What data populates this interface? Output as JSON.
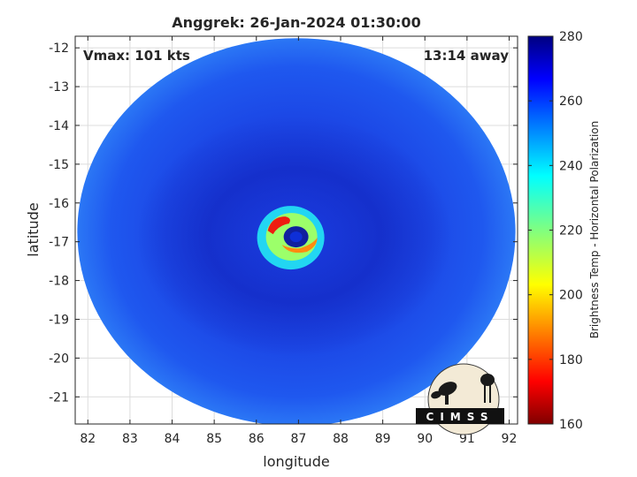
{
  "chart_data": {
    "type": "heatmap",
    "title": "Anggrek: 26-Jan-2024 01:30:00",
    "xlabel": "longitude",
    "ylabel": "latitude",
    "xlim": [
      81.7,
      92.2
    ],
    "ylim": [
      -21.7,
      -11.7
    ],
    "xticks": [
      82,
      83,
      84,
      85,
      86,
      87,
      88,
      89,
      90,
      91,
      92
    ],
    "yticks": [
      -12,
      -13,
      -14,
      -15,
      -16,
      -17,
      -18,
      -19,
      -20,
      -21
    ],
    "grid": true,
    "annotations": {
      "vmax": "Vmax: 101 kts",
      "away": "13:14 away"
    },
    "storm_center": {
      "lon": 86.9,
      "lat": -16.85
    },
    "swath": {
      "center_lon": 86.95,
      "center_lat": -16.75,
      "radius_lon": 5.2,
      "radius_lat": 5.0
    },
    "colorbar": {
      "label": "Brightness Temp - Horizontal Polarization",
      "min": 160,
      "max": 280,
      "ticks": [
        160,
        180,
        200,
        220,
        240,
        260,
        280
      ],
      "colormap": "jet"
    },
    "logo_text": "CIMSS"
  }
}
